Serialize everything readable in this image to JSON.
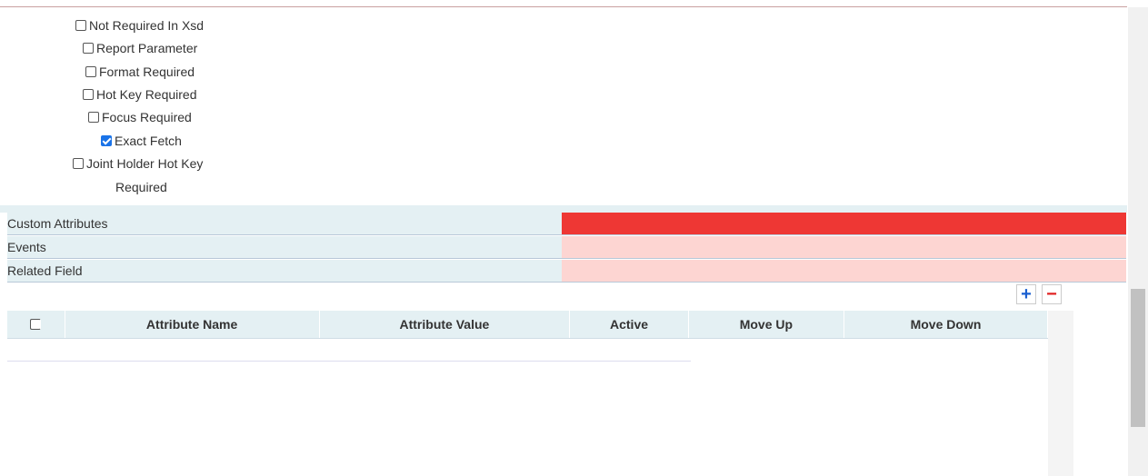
{
  "checkboxes": [
    {
      "label": "Not Required In Xsd"
    },
    {
      "label": "Report Parameter"
    },
    {
      "label": "Format Required"
    },
    {
      "label": "Hot Key Required"
    },
    {
      "label": "Focus Required"
    },
    {
      "label": "Exact Fetch"
    },
    {
      "label": "Joint Holder Hot Key",
      "label_line2": "Required"
    }
  ],
  "sections": [
    "Custom Attributes",
    "Events",
    "Related Field"
  ],
  "table": {
    "columns": [
      "Attribute Name",
      "Attribute Value",
      "Active",
      "Move Up",
      "Move Down"
    ]
  }
}
